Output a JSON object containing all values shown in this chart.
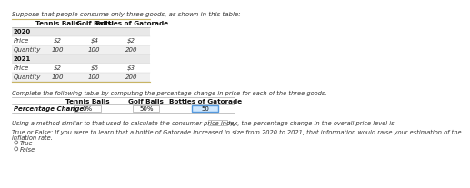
{
  "title": "Suppose that people consume only three goods, as shown in this table:",
  "table1_headers": [
    "Tennis Balls",
    "Golf Balls",
    "Bottles of Gatorade"
  ],
  "table1_rows": [
    {
      "label": "2020",
      "is_year": true,
      "values": [
        "",
        "",
        ""
      ]
    },
    {
      "label": "Price",
      "is_year": false,
      "values": [
        "$2",
        "$4",
        "$2"
      ]
    },
    {
      "label": "Quantity",
      "is_year": false,
      "values": [
        "100",
        "100",
        "200"
      ]
    },
    {
      "label": "2021",
      "is_year": true,
      "values": [
        "",
        "",
        ""
      ]
    },
    {
      "label": "Price",
      "is_year": false,
      "values": [
        "$2",
        "$6",
        "$3"
      ]
    },
    {
      "label": "Quantity",
      "is_year": false,
      "values": [
        "100",
        "100",
        "200"
      ]
    }
  ],
  "complete_text": "Complete the following table by computing the percentage change in price for each of the three goods.",
  "table2_headers": [
    "Tennis Balls",
    "Golf Balls",
    "Bottles of Gatorade"
  ],
  "table2_row_label": "Percentage Change",
  "table2_values": [
    "0%",
    "50%",
    "50"
  ],
  "table2_highlight": [
    false,
    false,
    true
  ],
  "cpi_text": "Using a method similar to that used to calculate the consumer price index, the percentage change in the overall price level is",
  "cpi_suffix": "%",
  "true_false_text_line1": "True or False: If you were to learn that a bottle of Gatorade increased in size from 2020 to 2021, that information would raise your estimation of the",
  "true_false_text_line2": "inflation rate.",
  "options": [
    "True",
    "False"
  ],
  "bg_color": "#ffffff",
  "table_year_bg": "#e8e8e8",
  "table_price_bg": "#ffffff",
  "table_qty_bg": "#f0f0f0",
  "highlight_box_color": "#d0e8ff",
  "highlight_border": "#5599dd",
  "normal_box_color": "#ffffff",
  "normal_border": "#aaaaaa",
  "border_color": "#c8b464",
  "title_fs": 5.0,
  "header_fs": 5.2,
  "cell_fs": 5.0,
  "label_fs": 5.0,
  "body_fs": 4.8
}
